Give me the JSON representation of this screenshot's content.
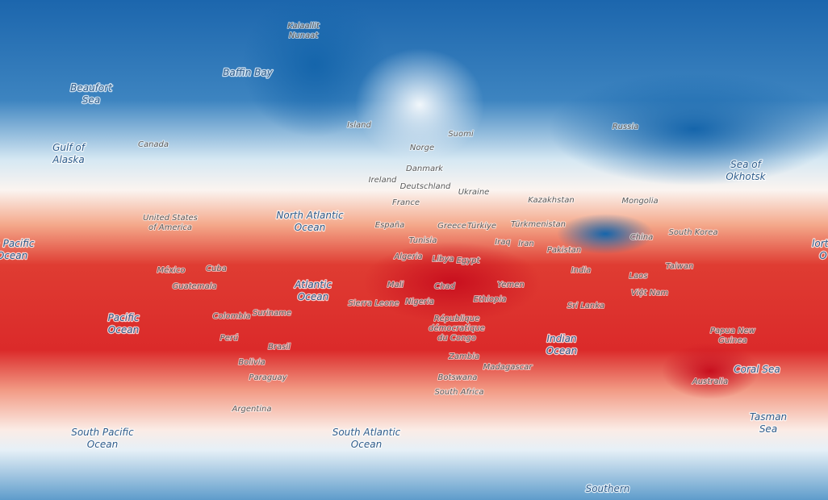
{
  "oceans": [
    {
      "lines": [
        "Baffin Bay"
      ]
    },
    {
      "lines": [
        "Beaufort",
        "Sea"
      ]
    },
    {
      "lines": [
        "Gulf of",
        "Alaska"
      ]
    },
    {
      "lines": [
        "North Atlantic",
        "Ocean"
      ]
    },
    {
      "lines": [
        "th Pacific",
        "Ocean"
      ]
    },
    {
      "lines": [
        "Atlantic",
        "Ocean"
      ]
    },
    {
      "lines": [
        "Pacific",
        "Ocean"
      ]
    },
    {
      "lines": [
        "Indian",
        "Ocean"
      ]
    },
    {
      "lines": [
        "Coral Sea"
      ]
    },
    {
      "lines": [
        "Tasman",
        "Sea"
      ]
    },
    {
      "lines": [
        "South Pacific",
        "Ocean"
      ]
    },
    {
      "lines": [
        "South Atlantic",
        "Ocean"
      ]
    },
    {
      "lines": [
        "Southern"
      ]
    },
    {
      "lines": [
        "Sea of",
        "Okhotsk"
      ]
    },
    {
      "lines": [
        "lorth",
        "O"
      ]
    }
  ],
  "places": [
    {
      "lines": [
        "Kalaallit",
        "Nunaat"
      ]
    },
    {
      "lines": [
        "Canada"
      ]
    },
    {
      "lines": [
        "Island"
      ]
    },
    {
      "lines": [
        "Norge"
      ]
    },
    {
      "lines": [
        "Suomi"
      ]
    },
    {
      "lines": [
        "Danmark"
      ]
    },
    {
      "lines": [
        "Ireland"
      ]
    },
    {
      "lines": [
        "Deutschland"
      ]
    },
    {
      "lines": [
        "Ukraine"
      ]
    },
    {
      "lines": [
        "France"
      ]
    },
    {
      "lines": [
        "Kazakhstan"
      ]
    },
    {
      "lines": [
        "Mongolia"
      ]
    },
    {
      "lines": [
        "Russia"
      ]
    },
    {
      "lines": [
        "United States",
        "of America"
      ]
    },
    {
      "lines": [
        "España"
      ]
    },
    {
      "lines": [
        "Greece"
      ]
    },
    {
      "lines": [
        "Türkiye"
      ]
    },
    {
      "lines": [
        "Türkmenistan"
      ]
    },
    {
      "lines": [
        "Tunisia"
      ]
    },
    {
      "lines": [
        "Iraq"
      ]
    },
    {
      "lines": [
        "Iran"
      ]
    },
    {
      "lines": [
        "Algeria"
      ]
    },
    {
      "lines": [
        "Libya"
      ]
    },
    {
      "lines": [
        "Egypt"
      ]
    },
    {
      "lines": [
        "Pakistan"
      ]
    },
    {
      "lines": [
        "China"
      ]
    },
    {
      "lines": [
        "South Korea"
      ]
    },
    {
      "lines": [
        "Taiwan"
      ]
    },
    {
      "lines": [
        "India"
      ]
    },
    {
      "lines": [
        "Laos"
      ]
    },
    {
      "lines": [
        "Việt Nam"
      ]
    },
    {
      "lines": [
        "México"
      ]
    },
    {
      "lines": [
        "Cuba"
      ]
    },
    {
      "lines": [
        "Guatemala"
      ]
    },
    {
      "lines": [
        "Mali"
      ]
    },
    {
      "lines": [
        "Chad"
      ]
    },
    {
      "lines": [
        "Yemen"
      ]
    },
    {
      "lines": [
        "Sierra Leone"
      ]
    },
    {
      "lines": [
        "Nigeria"
      ]
    },
    {
      "lines": [
        "Ethiopia"
      ]
    },
    {
      "lines": [
        "Sri Lanka"
      ]
    },
    {
      "lines": [
        "Colombia"
      ]
    },
    {
      "lines": [
        "Suriname"
      ]
    },
    {
      "lines": [
        "Perú"
      ]
    },
    {
      "lines": [
        "Brasil"
      ]
    },
    {
      "lines": [
        "Bolivia"
      ]
    },
    {
      "lines": [
        "Paraguay"
      ]
    },
    {
      "lines": [
        "République",
        "démocratique",
        "du Congo"
      ]
    },
    {
      "lines": [
        "Zambia"
      ]
    },
    {
      "lines": [
        "Madagascar"
      ]
    },
    {
      "lines": [
        "Botswana"
      ]
    },
    {
      "lines": [
        "South Africa"
      ]
    },
    {
      "lines": [
        "Argentina"
      ]
    },
    {
      "lines": [
        "Papua New",
        "Guinea"
      ]
    },
    {
      "lines": [
        "Australia"
      ]
    }
  ]
}
